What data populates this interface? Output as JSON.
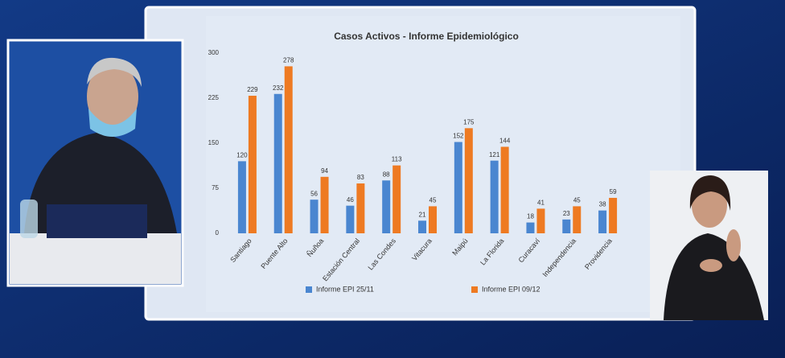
{
  "chart_data": {
    "type": "bar",
    "title": "Casos Activos - Informe Epidemiológico",
    "categories": [
      "Santiago",
      "Puente Alto",
      "Ñuñoa",
      "Estación Central",
      "Las Condes",
      "Vitacura",
      "Maipú",
      "La Florida",
      "Curacaví",
      "Independencia",
      "Providencia"
    ],
    "series": [
      {
        "name": "Informe EPI 25/11",
        "color": "#4a86d0",
        "values": [
          120,
          232,
          56,
          46,
          88,
          21,
          152,
          121,
          18,
          23,
          38
        ]
      },
      {
        "name": "Informe EPI 09/12",
        "color": "#ee7a22",
        "values": [
          229,
          278,
          94,
          83,
          113,
          45,
          175,
          144,
          41,
          45,
          59
        ]
      }
    ],
    "ylim": [
      0,
      300
    ],
    "yticks": [
      0,
      75,
      150,
      225,
      300
    ],
    "grid": false,
    "legend": "bottom"
  }
}
